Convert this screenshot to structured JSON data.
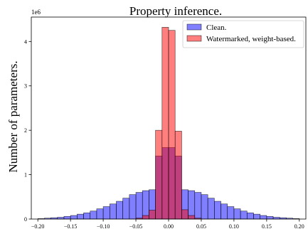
{
  "chart_data": {
    "type": "bar",
    "title": "Property inference.",
    "xlabel": "",
    "ylabel": "Number of parameters.",
    "y_offset_text": "1e6",
    "xlim": [
      -0.21,
      0.21
    ],
    "ylim": [
      0,
      4.55
    ],
    "x_ticks": [
      -0.2,
      -0.15,
      -0.1,
      -0.05,
      0.0,
      0.05,
      0.1,
      0.15,
      0.2
    ],
    "x_tick_labels": [
      "−0.20",
      "−0.15",
      "−0.10",
      "−0.05",
      "0.00",
      "0.05",
      "0.10",
      "0.15",
      "0.20"
    ],
    "y_ticks": [
      0,
      1,
      2,
      3,
      4
    ],
    "y_tick_labels": [
      "0",
      "1",
      "2",
      "3",
      "4"
    ],
    "bin_edges": [
      -0.2,
      -0.19,
      -0.18,
      -0.17,
      -0.16,
      -0.15,
      -0.14,
      -0.13,
      -0.12,
      -0.11,
      -0.1,
      -0.09,
      -0.08,
      -0.07,
      -0.06,
      -0.05,
      -0.04,
      -0.03,
      -0.02,
      -0.01,
      0.0,
      0.01,
      0.02,
      0.03,
      0.04,
      0.05,
      0.06,
      0.07,
      0.08,
      0.09,
      0.1,
      0.11,
      0.12,
      0.13,
      0.14,
      0.15,
      0.16,
      0.17,
      0.18,
      0.19,
      0.2
    ],
    "legend_location": "top-right",
    "grid": false,
    "series": [
      {
        "name": "Clean.",
        "color": "#0000ff",
        "alpha": 0.5,
        "values": [
          0.01,
          0.02,
          0.03,
          0.04,
          0.06,
          0.08,
          0.11,
          0.14,
          0.18,
          0.23,
          0.28,
          0.34,
          0.4,
          0.47,
          0.55,
          0.6,
          0.64,
          0.66,
          1.42,
          1.61,
          1.61,
          1.42,
          0.66,
          0.64,
          0.6,
          0.55,
          0.47,
          0.4,
          0.34,
          0.28,
          0.23,
          0.18,
          0.14,
          0.11,
          0.08,
          0.06,
          0.04,
          0.03,
          0.02,
          0.01
        ]
      },
      {
        "name": "Watermarked, weight-based.",
        "color": "#ff0000",
        "alpha": 0.5,
        "values": [
          0,
          0,
          0,
          0,
          0,
          0,
          0,
          0,
          0,
          0,
          0,
          0,
          0,
          0,
          0,
          0.02,
          0.08,
          0.2,
          2.0,
          4.32,
          4.25,
          1.98,
          0.21,
          0.08,
          0.02,
          0,
          0,
          0,
          0,
          0,
          0,
          0,
          0,
          0,
          0,
          0,
          0,
          0,
          0,
          0
        ]
      }
    ]
  }
}
